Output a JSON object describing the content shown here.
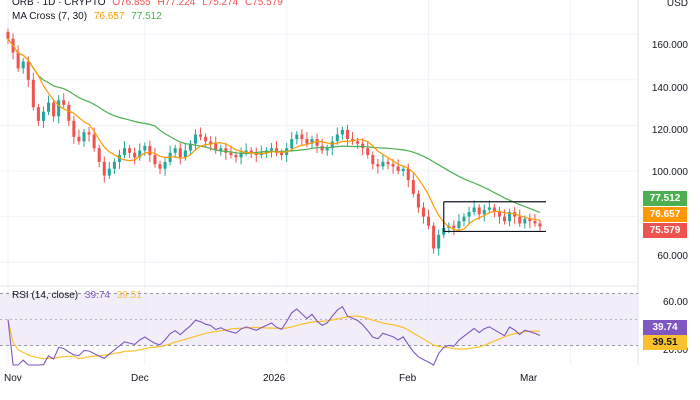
{
  "legend": {
    "symbol": "ORB · 1D · CRYPTO",
    "o": "O76.855",
    "h": "H77.224",
    "l": "L75.274",
    "c": "C75.579",
    "ma_label": "MA Cross (7, 30)",
    "ma_fast_value": "76.657",
    "ma_slow_value": "77.512",
    "rsi_label": "RSI (14, close)",
    "rsi_value": "39.74",
    "rsi_ma_value": "39.51"
  },
  "axis": {
    "currency": "USD",
    "price_ticks": [
      "160.000",
      "140.000",
      "120.000",
      "100.000",
      "60.000"
    ],
    "rsi_ticks": [
      "60.00",
      "20.00"
    ]
  },
  "badges": {
    "ma_slow": "77.512",
    "ma_fast": "76.657",
    "last_price": "75.579",
    "rsi": "39.74",
    "rsi_ma": "39.51"
  },
  "colors": {
    "up": "#26a69a",
    "down": "#ef5350",
    "ma_fast": "#ff9800",
    "ma_slow": "#4caf50",
    "rsi": "#7e57c2",
    "rsi_ma": "#fbc02d",
    "rsi_band": "#ede7f6",
    "range_lines": "#131722"
  },
  "chart_data": {
    "type": "candlestick",
    "x_ticks": [
      "Nov",
      "Dec",
      "2026",
      "Feb",
      "Mar"
    ],
    "ylim": [
      50,
      175
    ],
    "rsi_ylim": [
      15,
      75
    ],
    "rsi_levels": [
      70,
      30
    ],
    "range_box": {
      "top": 86.5,
      "bottom": 73.5
    },
    "series": [
      {
        "name": "ORB",
        "close": [
          158.0,
          152.0,
          145.0,
          148.0,
          140.0,
          128.0,
          122.0,
          126.0,
          130.0,
          124.0,
          131.0,
          129.0,
          122.0,
          115.0,
          113.0,
          117.0,
          116.0,
          110.0,
          104.0,
          98.0,
          101.0,
          104.0,
          107.0,
          110.0,
          108.0,
          106.0,
          109.0,
          111.0,
          107.0,
          103.0,
          101.0,
          104.0,
          108.0,
          110.0,
          106.0,
          109.0,
          112.0,
          116.0,
          115.0,
          113.0,
          112.0,
          109.0,
          110.0,
          108.0,
          107.0,
          106.0,
          108.0,
          109.0,
          108.0,
          107.0,
          108.0,
          109.0,
          110.0,
          108.0,
          107.0,
          110.0,
          114.0,
          116.0,
          114.0,
          112.0,
          114.0,
          111.0,
          109.0,
          110.0,
          113.0,
          116.0,
          118.0,
          114.0,
          113.0,
          112.0,
          110.0,
          107.0,
          103.0,
          102.0,
          104.0,
          103.0,
          102.0,
          100.0,
          101.0,
          96.0,
          90.0,
          84.0,
          80.0,
          76.0,
          66.0,
          72.0,
          75.0,
          76.0,
          75.0,
          78.0,
          80.0,
          82.0,
          84.0,
          81.0,
          83.0,
          84.0,
          82.0,
          80.0,
          78.0,
          82.0,
          80.0,
          77.0,
          79.0,
          78.0,
          77.0,
          75.6
        ]
      }
    ],
    "ma_fast_series": {
      "name": "MA 7",
      "window": 7
    },
    "ma_slow_series": {
      "name": "MA 30",
      "window": 30
    },
    "rsi_series": {
      "name": "RSI 14",
      "window": 14,
      "ma_window": 14
    }
  }
}
